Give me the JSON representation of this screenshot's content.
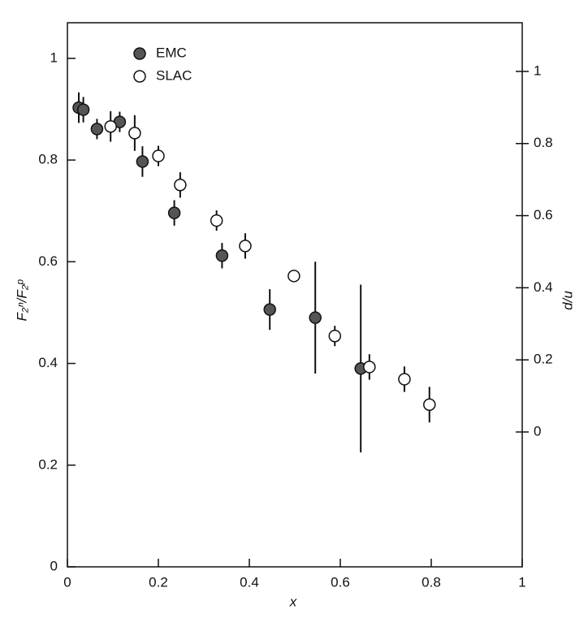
{
  "chart_data": {
    "type": "scatter",
    "xlabel": "x",
    "ylabel": "F₂ⁿ/F₂ᵖ",
    "y2label": "d/u",
    "xlim": [
      0,
      1
    ],
    "xticks": [
      0,
      0.2,
      0.4,
      0.6,
      0.8,
      1
    ],
    "ylim": [
      0,
      1.07
    ],
    "yticks": [
      0,
      0.2,
      0.4,
      0.6,
      0.8,
      1
    ],
    "y2lim": [
      -0.374,
      1.135
    ],
    "y2ticks": [
      0,
      0.2,
      0.4,
      0.6,
      0.8,
      1
    ],
    "legend": "upper left",
    "series": [
      {
        "name": "EMC",
        "color": "#555555",
        "x": [
          0.025,
          0.035,
          0.065,
          0.115,
          0.165,
          0.235,
          0.34,
          0.445,
          0.545,
          0.645
        ],
        "values": [
          0.903,
          0.899,
          0.861,
          0.875,
          0.797,
          0.696,
          0.612,
          0.506,
          0.49,
          0.39
        ],
        "errors": [
          0.03,
          0.025,
          0.02,
          0.02,
          0.03,
          0.025,
          0.025,
          0.04,
          0.11,
          0.165
        ]
      },
      {
        "name": "SLAC",
        "color": "#ffffff",
        "x": [
          0.095,
          0.148,
          0.2,
          0.248,
          0.328,
          0.391,
          0.498,
          0.588,
          0.664,
          0.741,
          0.796
        ],
        "values": [
          0.866,
          0.853,
          0.808,
          0.751,
          0.681,
          0.631,
          0.572,
          0.454,
          0.393,
          0.369,
          0.319
        ],
        "errors": [
          0.03,
          0.035,
          0.02,
          0.025,
          0.02,
          0.025,
          0,
          0.02,
          0.025,
          0.025,
          0.035
        ]
      }
    ]
  }
}
